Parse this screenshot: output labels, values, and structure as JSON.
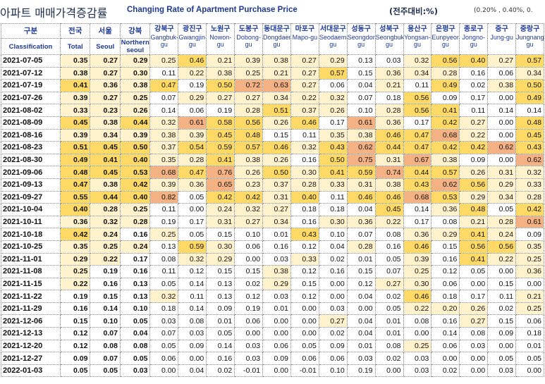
{
  "title": {
    "korean": "아파트 매매가격증감률",
    "english": "Changing Rate of Apartment Purchase Price",
    "unit": "(전주대비:%)",
    "note": "(0.20% , 0.40%, 0."
  },
  "headers": {
    "row1_label": "구분",
    "row2_label": "Classification",
    "total_ko": "전국",
    "total_en": "Total",
    "seoul_ko": "서울",
    "seoul_en": "Seoul",
    "ns_ko": "강북",
    "ns_en": "Northern seoul",
    "districts": [
      {
        "ko": "강북구",
        "en": "Gangbuk-gu"
      },
      {
        "ko": "광진구",
        "en": "Gwangjin-gu"
      },
      {
        "ko": "노원구",
        "en": "Nowon-gu"
      },
      {
        "ko": "도봉구",
        "en": "Dobong-gu"
      },
      {
        "ko": "동대문구",
        "en": "Dongdaemun-gu"
      },
      {
        "ko": "마포구",
        "en": "Mapo-gu"
      },
      {
        "ko": "서대문구",
        "en": "Seodaemun-gu"
      },
      {
        "ko": "성동구",
        "en": "Seongdong-gu"
      },
      {
        "ko": "성북구",
        "en": "Seongbuk-gu"
      },
      {
        "ko": "용산구",
        "en": "Yongsan-gu"
      },
      {
        "ko": "은평구",
        "en": "Eunpyeong-gu"
      },
      {
        "ko": "종로구",
        "en": "Jongno-gu"
      },
      {
        "ko": "중구",
        "en": "Jung-gu"
      },
      {
        "ko": "중랑구",
        "en": "Jungnang-gu"
      }
    ]
  },
  "colors": {
    "header_text": "#1f3a93",
    "white": "#ffffff",
    "light": "#fff2cc",
    "medium": "#ffd966",
    "strong": "#f4b183"
  },
  "rows": [
    {
      "date": "2021-07-05",
      "values": [
        "0.35",
        "0.27",
        "0.29",
        "0.25",
        "0.46",
        "0.21",
        "0.39",
        "0.38",
        "0.27",
        "0.29",
        "0.13",
        "0.03",
        "0.32",
        "0.56",
        "0.40",
        "0.27",
        "0.57"
      ]
    },
    {
      "date": "2021-07-12",
      "values": [
        "0.38",
        "0.27",
        "0.30",
        "0.11",
        "0.22",
        "0.38",
        "0.25",
        "0.21",
        "0.27",
        "0.57",
        "0.15",
        "0.36",
        "0.34",
        "0.28",
        "0.16",
        "0.06",
        "0.34"
      ]
    },
    {
      "date": "2021-07-19",
      "values": [
        "0.41",
        "0.36",
        "0.38",
        "0.47",
        "0.19",
        "0.50",
        "0.72",
        "0.63",
        "0.27",
        "0.06",
        "0.04",
        "0.21",
        "0.11",
        "0.49",
        "0.02",
        "0.38",
        "0.50"
      ]
    },
    {
      "date": "2021-07-26",
      "values": [
        "0.39",
        "0.27",
        "0.25",
        "0.07",
        "0.29",
        "0.27",
        "0.27",
        "0.34",
        "0.22",
        "0.32",
        "0.07",
        "0.18",
        "0.56",
        "0.09",
        "0.17",
        "0.00",
        "0.49"
      ]
    },
    {
      "date": "2021-08-02",
      "values": [
        "0.33",
        "0.23",
        "0.26",
        "0.14",
        "0.06",
        "0.19",
        "0.28",
        "0.51",
        "0.37",
        "0.26",
        "0.10",
        "0.28",
        "0.56",
        "0.41",
        "0.11",
        "0.14",
        "0.14"
      ]
    },
    {
      "date": "2021-08-09",
      "values": [
        "0.45",
        "0.38",
        "0.44",
        "0.32",
        "0.61",
        "0.58",
        "0.56",
        "0.26",
        "0.46",
        "0.17",
        "0.61",
        "0.36",
        "0.17",
        "0.42",
        "0.27",
        "0.00",
        "0.48"
      ]
    },
    {
      "date": "2021-08-16",
      "values": [
        "0.39",
        "0.34",
        "0.39",
        "0.38",
        "0.39",
        "0.45",
        "0.48",
        "0.15",
        "0.11",
        "0.35",
        "0.38",
        "0.46",
        "0.47",
        "0.68",
        "0.22",
        "0.00",
        "0.45"
      ]
    },
    {
      "date": "2021-08-23",
      "values": [
        "0.51",
        "0.45",
        "0.50",
        "0.37",
        "0.54",
        "0.59",
        "0.57",
        "0.46",
        "0.32",
        "0.43",
        "0.62",
        "0.44",
        "0.47",
        "0.42",
        "0.42",
        "0.62",
        "0.43"
      ]
    },
    {
      "date": "2021-08-30",
      "values": [
        "0.49",
        "0.41",
        "0.40",
        "0.35",
        "0.28",
        "0.41",
        "0.38",
        "0.26",
        "0.16",
        "0.50",
        "0.75",
        "0.31",
        "0.67",
        "0.38",
        "0.09",
        "0.00",
        "0.62"
      ]
    },
    {
      "date": "2021-09-06",
      "values": [
        "0.48",
        "0.45",
        "0.53",
        "0.68",
        "0.47",
        "0.76",
        "0.26",
        "0.50",
        "0.30",
        "0.41",
        "0.59",
        "0.74",
        "0.44",
        "0.57",
        "0.26",
        "0.31",
        "0.32"
      ]
    },
    {
      "date": "2021-09-13",
      "values": [
        "0.47",
        "0.38",
        "0.42",
        "0.39",
        "0.36",
        "0.65",
        "0.23",
        "0.37",
        "0.28",
        "0.33",
        "0.31",
        "0.38",
        "0.43",
        "0.62",
        "0.56",
        "0.29",
        "0.33"
      ]
    },
    {
      "date": "2021-09-27",
      "values": [
        "0.55",
        "0.44",
        "0.40",
        "0.82",
        "0.05",
        "0.42",
        "0.42",
        "0.31",
        "0.40",
        "0.11",
        "0.46",
        "0.46",
        "0.68",
        "0.53",
        "0.29",
        "0.34",
        "0.28"
      ]
    },
    {
      "date": "2021-10-04",
      "values": [
        "0.40",
        "0.28",
        "0.25",
        "0.11",
        "0.00",
        "0.24",
        "0.32",
        "0.27",
        "0.18",
        "0.18",
        "0.04",
        "0.45",
        "0.14",
        "0.36",
        "0.48",
        "0.05",
        "0.42"
      ]
    },
    {
      "date": "2021-10-11",
      "values": [
        "0.36",
        "0.32",
        "0.28",
        "0.19",
        "0.17",
        "0.31",
        "0.27",
        "0.34",
        "0.16",
        "0.30",
        "0.36",
        "0.22",
        "0.17",
        "0.08",
        "0.21",
        "0.28",
        "0.61"
      ]
    },
    {
      "date": "2021-10-18",
      "values": [
        "0.42",
        "0.24",
        "0.16",
        "0.25",
        "0.05",
        "0.15",
        "0.10",
        "0.01",
        "0.43",
        "0.10",
        "0.07",
        "0.08",
        "0.36",
        "0.29",
        "0.41",
        "0.24",
        "0.09"
      ]
    },
    {
      "date": "2021-10-25",
      "values": [
        "0.35",
        "0.25",
        "0.24",
        "0.13",
        "0.59",
        "0.30",
        "0.06",
        "0.16",
        "0.12",
        "0.04",
        "0.28",
        "0.16",
        "0.46",
        "0.15",
        "0.56",
        "0.56",
        "0.35"
      ]
    },
    {
      "date": "2021-11-01",
      "values": [
        "0.29",
        "0.22",
        "0.17",
        "0.08",
        "0.32",
        "0.29",
        "0.00",
        "0.03",
        "0.33",
        "0.02",
        "0.01",
        "0.05",
        "0.39",
        "0.16",
        "0.41",
        "0.22",
        "0.25"
      ]
    },
    {
      "date": "2021-11-08",
      "values": [
        "0.25",
        "0.19",
        "0.16",
        "0.11",
        "0.12",
        "0.15",
        "0.15",
        "0.38",
        "0.12",
        "0.16",
        "0.15",
        "0.07",
        "0.25",
        "0.12",
        "0.05",
        "0.00",
        "0.36"
      ]
    },
    {
      "date": "2021-11-15",
      "values": [
        "0.22",
        "0.16",
        "0.13",
        "0.05",
        "0.14",
        "0.13",
        "0.02",
        "0.29",
        "0.15",
        "0.00",
        "0.12",
        "0.27",
        "0.30",
        "0.06",
        "0.00",
        "0.15",
        "0.00"
      ]
    },
    {
      "date": "2021-11-22",
      "values": [
        "0.19",
        "0.15",
        "0.13",
        "0.32",
        "0.11",
        "0.13",
        "0.12",
        "0.03",
        "0.12",
        "0.00",
        "0.04",
        "0.02",
        "0.46",
        "0.18",
        "0.17",
        "0.11",
        "0.21"
      ]
    },
    {
      "date": "2021-11-29",
      "values": [
        "0.16",
        "0.14",
        "0.10",
        "0.18",
        "0.14",
        "0.09",
        "0.19",
        "0.01",
        "0.00",
        "0.03",
        "0.00",
        "0.05",
        "0.22",
        "0.20",
        "0.26",
        "0.02",
        "0.25"
      ]
    },
    {
      "date": "2021-12-06",
      "values": [
        "0.15",
        "0.10",
        "0.05",
        "0.03",
        "0.08",
        "0.01",
        "0.06",
        "0.00",
        "0.00",
        "0.27",
        "0.04",
        "0.01",
        "0.08",
        "0.16",
        "0.27",
        "0.15",
        "0.06"
      ]
    },
    {
      "date": "2021-12-13",
      "values": [
        "0.12",
        "0.07",
        "0.04",
        "0.07",
        "0.03",
        "0.05",
        "0.00",
        "0.00",
        "0.00",
        "0.02",
        "0.04",
        "0.01",
        "0.00",
        "0.14",
        "0.08",
        "0.09",
        "0.18"
      ]
    },
    {
      "date": "2021-12-20",
      "values": [
        "0.12",
        "0.08",
        "0.08",
        "0.05",
        "0.09",
        "0.14",
        "0.03",
        "0.06",
        "0.05",
        "0.09",
        "0.01",
        "0.08",
        "0.25",
        "0.06",
        "0.03",
        "0.00",
        "0.01"
      ]
    },
    {
      "date": "2021-12-27",
      "values": [
        "0.09",
        "0.07",
        "0.05",
        "0.06",
        "0.00",
        "0.16",
        "0.03",
        "0.09",
        "0.06",
        "0.06",
        "0.03",
        "0.02",
        "0.03",
        "0.00",
        "0.00",
        "0.05",
        "0.05"
      ]
    },
    {
      "date": "2022-01-03",
      "values": [
        "0.05",
        "0.05",
        "0.03",
        "0.00",
        "0.04",
        "0.02",
        "-0.01",
        "0.00",
        "-0.01",
        "0.10",
        "0.19",
        "0.00",
        "0.03",
        "0.02",
        "0.00",
        "0.03",
        "0.00"
      ]
    }
  ]
}
